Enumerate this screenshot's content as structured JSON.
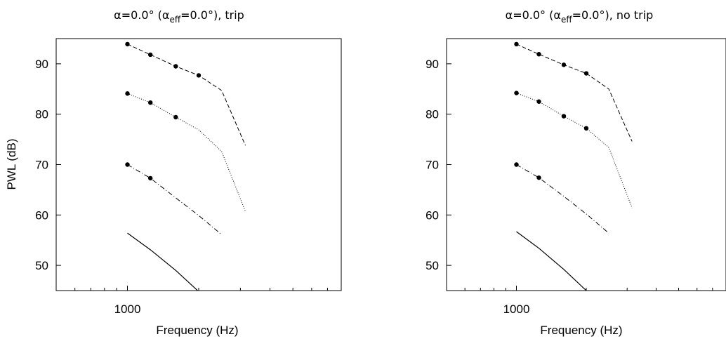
{
  "figure": {
    "ylabel": "PWL (dB)"
  },
  "chart_data": [
    {
      "type": "line",
      "title": {
        "prefix": "α=0.0° (α",
        "sub": "eff",
        "suffix": "=0.0°), trip"
      },
      "xlabel": "Frequency (Hz)",
      "ylabel": "PWL (dB)",
      "x_scale": "log",
      "xlim": [
        500,
        8000
      ],
      "ylim": [
        45,
        95
      ],
      "xticks": [
        1000
      ],
      "xtick_labels": [
        "1000"
      ],
      "yticks": [
        50,
        60,
        70,
        80,
        90
      ],
      "ytick_labels": [
        "50",
        "60",
        "70",
        "80",
        "90"
      ],
      "grid": false,
      "legend": "none",
      "series": [
        {
          "style": "dashed",
          "x": [
            1000,
            1250,
            1600,
            2000,
            2500,
            3150
          ],
          "y": [
            93.9,
            91.8,
            89.5,
            87.7,
            84.7,
            73.8
          ],
          "markers": [
            true,
            true,
            true,
            true,
            false,
            false
          ]
        },
        {
          "style": "dotted",
          "x": [
            1000,
            1250,
            1600,
            2000,
            2500,
            3150
          ],
          "y": [
            84.1,
            82.3,
            79.4,
            76.9,
            72.6,
            60.7
          ],
          "markers": [
            true,
            true,
            true,
            false,
            false,
            false
          ]
        },
        {
          "style": "dashdot",
          "x": [
            1000,
            1250,
            1600,
            2000,
            2500
          ],
          "y": [
            70.0,
            67.3,
            63.4,
            59.9,
            56.1
          ],
          "markers": [
            true,
            true,
            false,
            false,
            false
          ]
        },
        {
          "style": "solid",
          "x": [
            1000,
            1250,
            1600,
            2000
          ],
          "y": [
            56.4,
            53.1,
            49.0,
            44.8
          ],
          "markers": [
            false,
            false,
            false,
            false
          ]
        }
      ]
    },
    {
      "type": "line",
      "title": {
        "prefix": "α=0.0° (α",
        "sub": "eff",
        "suffix": "=0.0°), no trip"
      },
      "xlabel": "Frequency (Hz)",
      "ylabel": "",
      "x_scale": "log",
      "xlim": [
        500,
        8000
      ],
      "ylim": [
        45,
        95
      ],
      "xticks": [
        1000
      ],
      "xtick_labels": [
        "1000"
      ],
      "yticks": [
        50,
        60,
        70,
        80,
        90
      ],
      "ytick_labels": [
        "50",
        "60",
        "70",
        "80",
        "90"
      ],
      "grid": false,
      "legend": "none",
      "series": [
        {
          "style": "dashed",
          "x": [
            1000,
            1250,
            1600,
            2000,
            2500,
            3150
          ],
          "y": [
            93.9,
            91.9,
            89.8,
            88.1,
            85.0,
            74.6
          ],
          "markers": [
            true,
            true,
            true,
            true,
            false,
            false
          ]
        },
        {
          "style": "dotted",
          "x": [
            1000,
            1250,
            1600,
            2000,
            2500,
            3150
          ],
          "y": [
            84.2,
            82.5,
            79.6,
            77.2,
            73.4,
            61.4
          ],
          "markers": [
            true,
            true,
            true,
            true,
            false,
            false
          ]
        },
        {
          "style": "dashdot",
          "x": [
            1000,
            1250,
            1600,
            2000,
            2500
          ],
          "y": [
            70.0,
            67.4,
            63.7,
            60.2,
            56.4
          ],
          "markers": [
            true,
            true,
            false,
            false,
            false
          ]
        },
        {
          "style": "solid",
          "x": [
            1000,
            1250,
            1600,
            2000
          ],
          "y": [
            56.7,
            53.4,
            49.2,
            45.0
          ],
          "markers": [
            false,
            false,
            false,
            false
          ]
        }
      ]
    }
  ]
}
